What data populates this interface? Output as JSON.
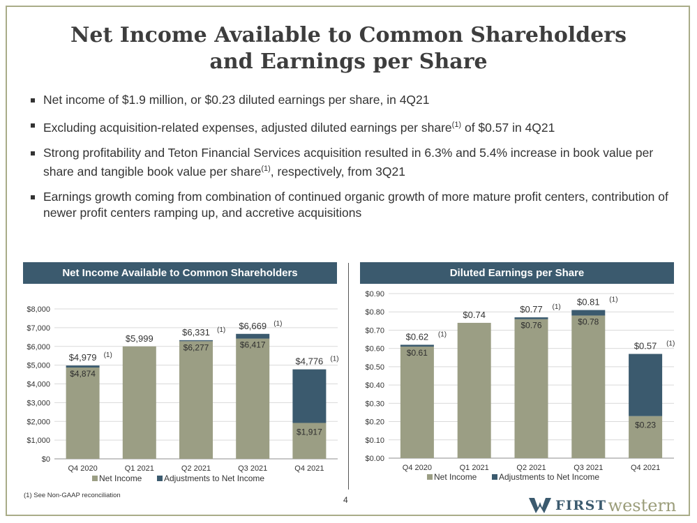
{
  "slide": {
    "title_line1": "Net Income Available to Common Shareholders",
    "title_line2": "and Earnings per Share",
    "page_number": "4",
    "footnote": "(1) See Non-GAAP reconciliation",
    "logo_part1": "FIRST",
    "logo_part2": "western"
  },
  "bullets": [
    {
      "text": "Net income of $1.9 million, or $0.23 diluted earnings per share, in 4Q21",
      "sup": "",
      "tail": ""
    },
    {
      "text": "Excluding acquisition-related expenses, adjusted diluted earnings per share",
      "sup": "(1)",
      "tail": " of $0.57 in 4Q21"
    },
    {
      "text": "Strong profitability and Teton Financial Services acquisition resulted in 6.3% and 5.4% increase in book value per share and tangible book value per share",
      "sup": "(1)",
      "tail": ", respectively, from 3Q21"
    },
    {
      "text": "Earnings growth coming from combination of continued organic growth of more mature profit centers, contribution of newer profit centers ramping up, and accretive acquisitions",
      "sup": "",
      "tail": ""
    }
  ],
  "colors": {
    "net_income": "#9b9e84",
    "adjustments": "#3b5a6e",
    "grid": "#d9d9d9",
    "axis": "#8c8c8c"
  },
  "chart_data": [
    {
      "type": "bar",
      "stacked": true,
      "title": "Net Income Available to Common Shareholders",
      "categories": [
        "Q4 2020",
        "Q1 2021",
        "Q2 2021",
        "Q3 2021",
        "Q4 2021"
      ],
      "series": [
        {
          "name": "Net Income",
          "values": [
            4874,
            5999,
            6277,
            6417,
            1917
          ]
        },
        {
          "name": "Adjustments to Net Income",
          "values": [
            105,
            0,
            54,
            252,
            2859
          ]
        }
      ],
      "inside_labels": [
        "$4,874",
        "",
        "$6,277",
        "$6,417",
        "$1,917"
      ],
      "total_labels": [
        "$4,979",
        "$5,999",
        "$6,331",
        "$6,669",
        "$4,776"
      ],
      "total_notes": [
        "(1)",
        "",
        "(1)",
        "(1)",
        "(1)"
      ],
      "yticks": [
        "$0",
        "$1,000",
        "$2,000",
        "$3,000",
        "$4,000",
        "$5,000",
        "$6,000",
        "$7,000",
        "$8,000"
      ],
      "ylim": [
        0,
        8000
      ],
      "grid": true,
      "legend": "bottom"
    },
    {
      "type": "bar",
      "stacked": true,
      "title": "Diluted Earnings per Share",
      "categories": [
        "Q4 2020",
        "Q1 2021",
        "Q2 2021",
        "Q3 2021",
        "Q4 2021"
      ],
      "series": [
        {
          "name": "Net Income",
          "values": [
            0.61,
            0.74,
            0.76,
            0.78,
            0.23
          ]
        },
        {
          "name": "Adjustments to Net Income",
          "values": [
            0.01,
            0,
            0.01,
            0.03,
            0.34
          ]
        }
      ],
      "inside_labels": [
        "$0.61",
        "",
        "$0.76",
        "$0.78",
        "$0.23"
      ],
      "total_labels": [
        "$0.62",
        "$0.74",
        "$0.77",
        "$0.81",
        "$0.57"
      ],
      "total_notes": [
        "(1)",
        "",
        "(1)",
        "(1)",
        "(1)"
      ],
      "yticks": [
        "$0.00",
        "$0.10",
        "$0.20",
        "$0.30",
        "$0.40",
        "$0.50",
        "$0.60",
        "$0.70",
        "$0.80",
        "$0.90"
      ],
      "ylim": [
        0,
        0.9
      ],
      "grid": true,
      "legend": "bottom"
    }
  ]
}
